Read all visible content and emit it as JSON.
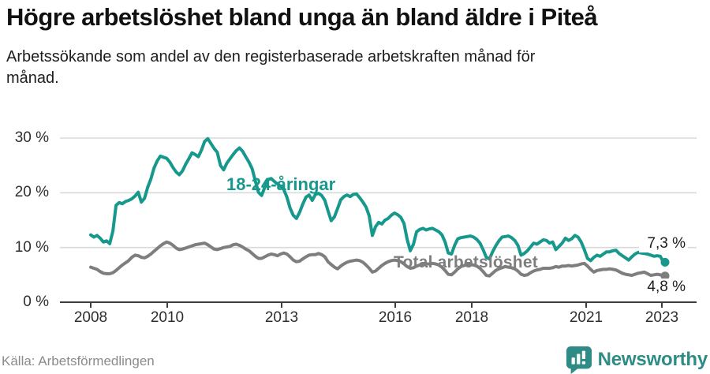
{
  "header": {
    "title": "Högre arbetslöshet bland unga än bland äldre i Piteå",
    "subtitle": "Arbetssökande som andel av den registerbaserade arbetskraften månad för månad."
  },
  "chart_data": {
    "type": "line",
    "unit": "%",
    "x_range": {
      "start": "2008-01",
      "end": "2023-02",
      "interval": "monthly"
    },
    "x_tick_labels": [
      "2008",
      "2010",
      "2013",
      "2016",
      "2018",
      "2021",
      "2023"
    ],
    "y_tick_labels": [
      "30 %",
      "20 %",
      "10 %",
      "0 %"
    ],
    "y_gridlines": [
      0,
      10,
      20,
      30
    ],
    "ylim": [
      0,
      32
    ],
    "grid": "horizontal",
    "legend_position": "inline-annotations",
    "series": [
      {
        "name": "18-24-åringar",
        "color": "#17988c",
        "end_label": "7,3 %",
        "last_value": 7.3,
        "values": [
          12.3,
          11.9,
          12.2,
          11.7,
          11.0,
          11.2,
          10.7,
          13.0,
          17.7,
          18.2,
          18.0,
          18.4,
          18.6,
          18.9,
          19.4,
          20.1,
          18.3,
          19.0,
          21.0,
          22.5,
          24.5,
          25.8,
          26.7,
          26.5,
          26.3,
          25.6,
          24.6,
          23.8,
          23.3,
          24.0,
          25.2,
          26.2,
          27.3,
          27.0,
          26.6,
          27.8,
          29.4,
          29.9,
          29.0,
          28.1,
          27.4,
          25.0,
          24.2,
          25.4,
          26.2,
          27.0,
          27.7,
          28.2,
          27.6,
          26.6,
          25.6,
          24.4,
          22.2,
          20.1,
          19.5,
          21.0,
          22.4,
          22.6,
          22.1,
          21.6,
          21.2,
          20.6,
          19.2,
          17.2,
          15.9,
          15.3,
          16.4,
          17.9,
          19.2,
          19.6,
          18.6,
          19.7,
          19.9,
          19.5,
          18.6,
          16.7,
          14.9,
          15.6,
          17.1,
          18.7,
          19.3,
          19.6,
          19.3,
          19.7,
          19.8,
          19.1,
          18.3,
          17.4,
          15.8,
          12.2,
          13.8,
          14.6,
          14.3,
          15.0,
          15.3,
          15.9,
          16.3,
          16.0,
          15.5,
          14.4,
          11.5,
          9.4,
          10.6,
          12.9,
          13.3,
          13.5,
          13.2,
          13.4,
          13.5,
          13.2,
          12.9,
          12.3,
          11.0,
          9.0,
          8.8,
          10.4,
          11.6,
          11.8,
          11.9,
          12.0,
          12.1,
          11.9,
          11.5,
          10.8,
          9.6,
          8.2,
          7.9,
          9.2,
          10.3,
          11.2,
          11.9,
          12.0,
          12.1,
          11.8,
          11.3,
          10.4,
          8.6,
          8.9,
          9.4,
          10.1,
          10.8,
          10.6,
          11.0,
          11.4,
          11.3,
          10.8,
          11.0,
          9.6,
          10.2,
          10.8,
          11.7,
          11.3,
          11.6,
          12.2,
          11.9,
          11.0,
          9.6,
          8.0,
          7.6,
          8.2,
          8.6,
          8.4,
          8.8,
          9.2,
          9.2,
          9.4,
          9.5,
          8.9,
          8.5,
          8.1,
          7.7,
          8.3,
          8.8,
          9.1,
          9.0,
          8.9,
          8.8,
          8.6,
          8.4,
          8.5,
          8.4,
          7.3
        ]
      },
      {
        "name": "Total arbetslöshet",
        "color": "#7e7e7e",
        "end_label": "4,8 %",
        "last_value": 4.8,
        "values": [
          6.4,
          6.2,
          6.0,
          5.6,
          5.3,
          5.2,
          5.2,
          5.4,
          5.8,
          6.3,
          6.8,
          7.2,
          7.6,
          8.2,
          8.6,
          8.5,
          8.2,
          8.1,
          8.4,
          8.8,
          9.3,
          9.8,
          10.3,
          10.7,
          11.0,
          10.8,
          10.4,
          9.9,
          9.6,
          9.7,
          9.9,
          10.1,
          10.3,
          10.5,
          10.6,
          10.7,
          10.8,
          10.5,
          10.1,
          9.7,
          9.6,
          9.8,
          10.0,
          10.1,
          10.2,
          10.5,
          10.6,
          10.4,
          10.1,
          9.7,
          9.4,
          8.9,
          8.4,
          8.0,
          8.0,
          8.3,
          8.6,
          8.8,
          8.7,
          8.5,
          8.8,
          9.0,
          8.8,
          8.3,
          7.7,
          7.4,
          7.5,
          7.9,
          8.3,
          8.6,
          8.7,
          8.7,
          8.9,
          8.7,
          8.3,
          7.4,
          6.9,
          6.4,
          6.1,
          6.6,
          7.0,
          7.3,
          7.5,
          7.6,
          7.7,
          7.6,
          7.3,
          6.8,
          6.2,
          5.5,
          5.7,
          6.2,
          6.7,
          7.1,
          7.4,
          7.6,
          7.7,
          7.6,
          7.4,
          7.0,
          6.5,
          6.2,
          6.3,
          6.6,
          6.8,
          6.9,
          7.0,
          7.0,
          7.1,
          7.0,
          6.8,
          6.4,
          5.8,
          5.1,
          5.0,
          5.5,
          6.1,
          6.5,
          6.7,
          6.9,
          6.9,
          6.8,
          6.6,
          6.2,
          5.6,
          4.9,
          4.8,
          5.3,
          5.8,
          6.1,
          6.3,
          6.5,
          6.4,
          6.3,
          6.1,
          5.7,
          5.1,
          4.9,
          5.0,
          5.4,
          5.7,
          5.9,
          6.0,
          6.2,
          6.2,
          6.2,
          6.3,
          6.5,
          6.4,
          6.6,
          6.6,
          6.7,
          6.6,
          6.7,
          6.8,
          7.0,
          7.1,
          6.6,
          6.0,
          5.5,
          5.8,
          5.9,
          6.0,
          6.0,
          6.1,
          6.0,
          5.9,
          5.6,
          5.3,
          5.1,
          5.0,
          4.9,
          5.1,
          5.3,
          5.4,
          5.5,
          5.2,
          4.9,
          5.0,
          5.1,
          5.0,
          4.8
        ]
      }
    ]
  },
  "footer": {
    "source": "Källa: Arbetsförmedlingen",
    "brand": "Newsworthy"
  }
}
